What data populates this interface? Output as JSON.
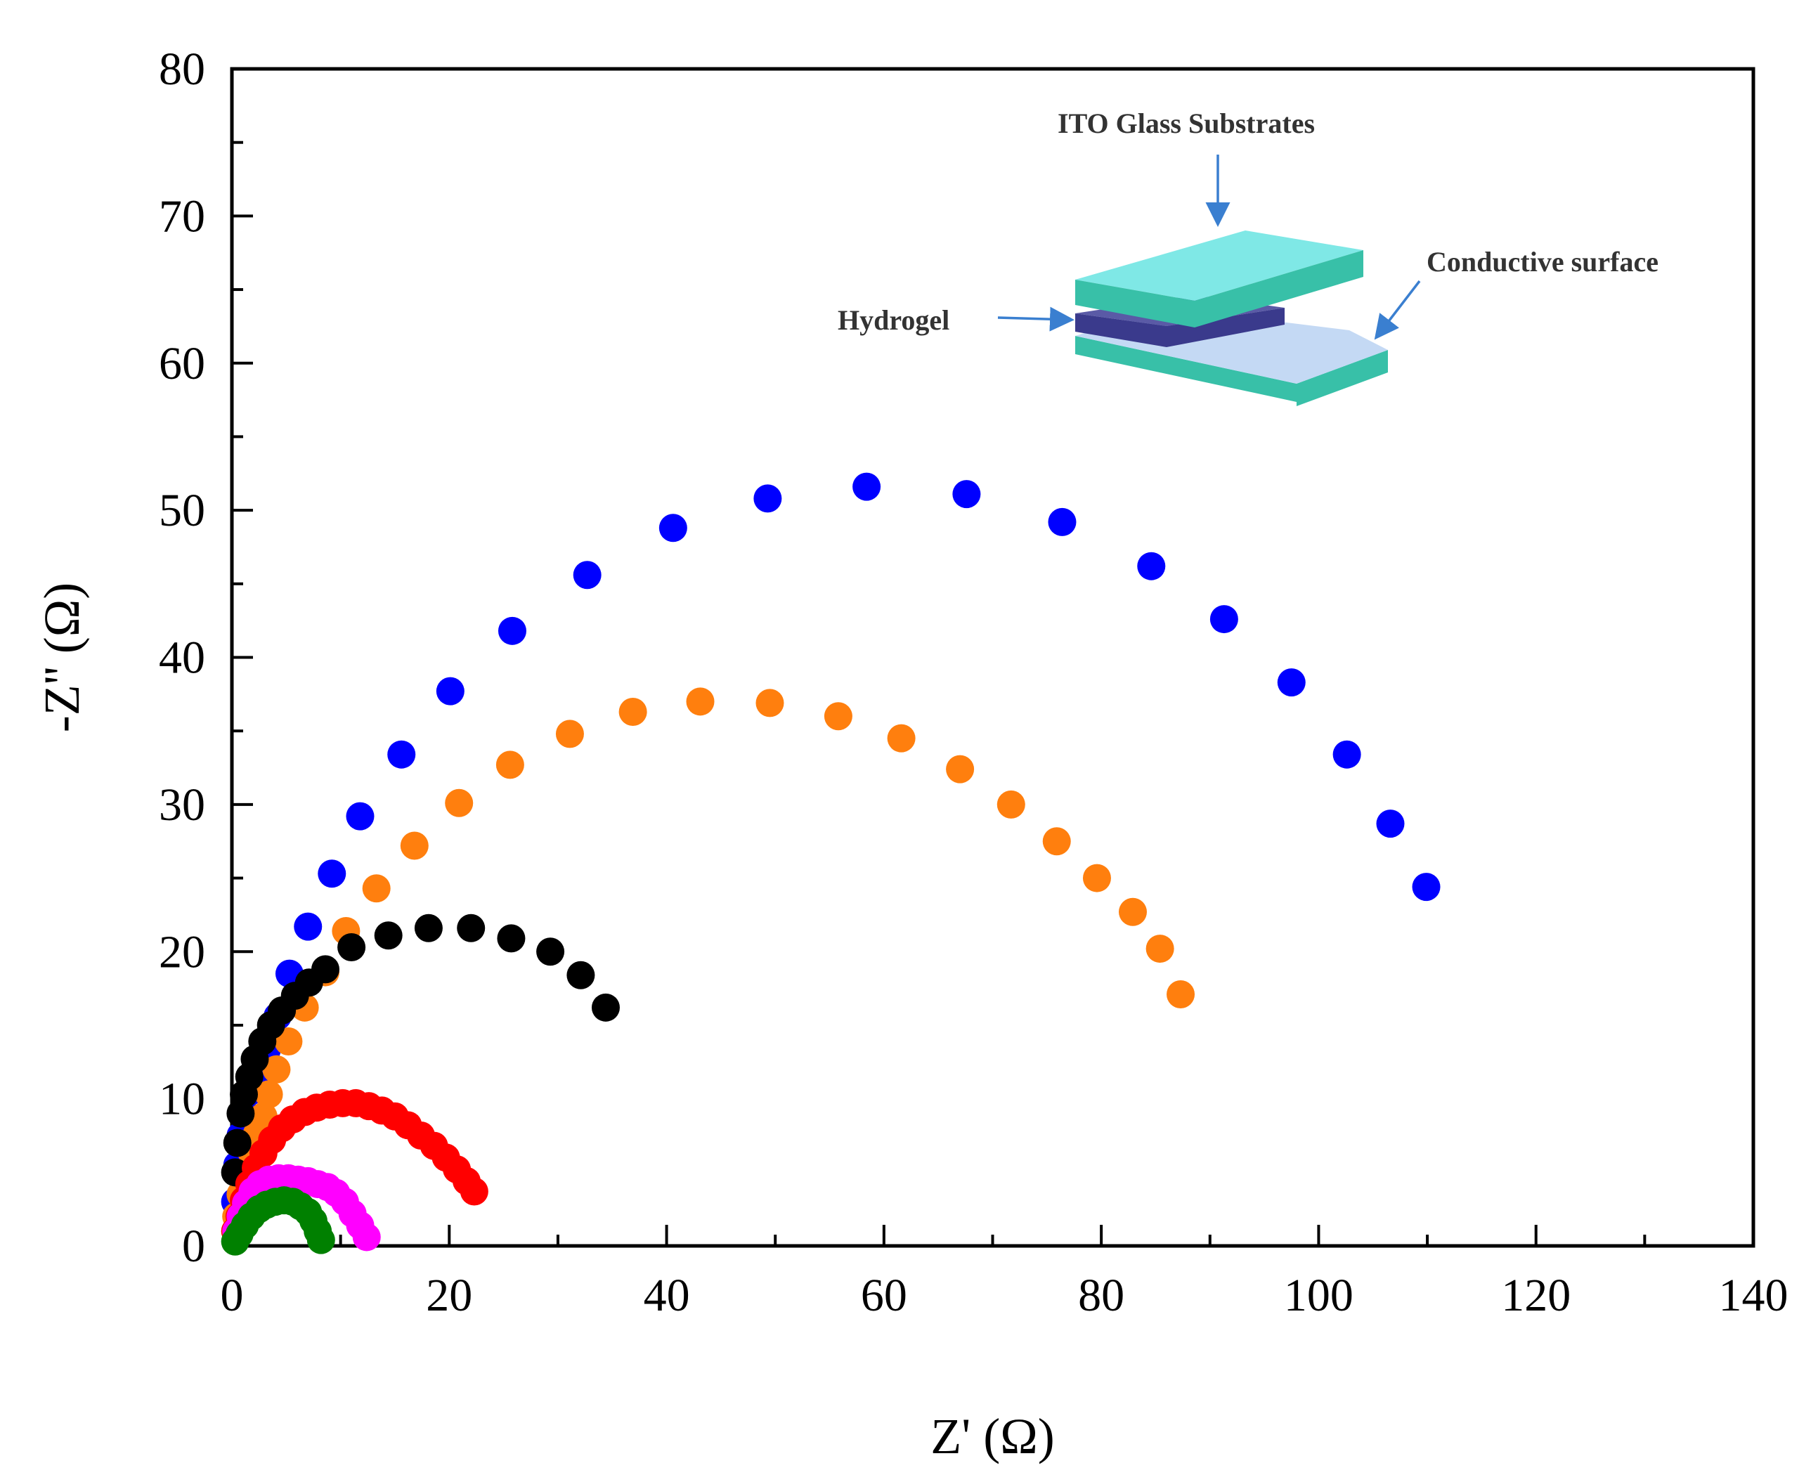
{
  "chart_data": {
    "type": "scatter",
    "title": "",
    "xlabel": "Z' (Ω)",
    "ylabel": "-Z'' (Ω)",
    "xlim": [
      0,
      140
    ],
    "ylim": [
      0,
      80
    ],
    "xticks": [
      0,
      20,
      40,
      60,
      80,
      100,
      120,
      140
    ],
    "yticks": [
      0,
      10,
      20,
      30,
      40,
      50,
      60,
      70,
      80
    ],
    "grid": false,
    "legend": "none",
    "series": [
      {
        "name": "blue",
        "color": "#0000ff",
        "points": [
          [
            0.3,
            3
          ],
          [
            0.5,
            5.5
          ],
          [
            0.8,
            7.5
          ],
          [
            1.2,
            9
          ],
          [
            1.7,
            10.5
          ],
          [
            2.3,
            11.8
          ],
          [
            3.2,
            13.3
          ],
          [
            4.2,
            15.6
          ],
          [
            5.3,
            18.5
          ],
          [
            7,
            21.7
          ],
          [
            9.2,
            25.3
          ],
          [
            11.8,
            29.2
          ],
          [
            15.6,
            33.4
          ],
          [
            20.1,
            37.7
          ],
          [
            25.8,
            41.8
          ],
          [
            32.7,
            45.6
          ],
          [
            40.6,
            48.8
          ],
          [
            49.3,
            50.8
          ],
          [
            58.4,
            51.6
          ],
          [
            67.6,
            51.1
          ],
          [
            76.4,
            49.2
          ],
          [
            84.6,
            46.2
          ],
          [
            91.3,
            42.6
          ],
          [
            97.5,
            38.3
          ],
          [
            102.6,
            33.4
          ],
          [
            106.6,
            28.7
          ],
          [
            109.9,
            24.4
          ]
        ]
      },
      {
        "name": "orange",
        "color": "#ff7f0e",
        "points": [
          [
            0.4,
            2
          ],
          [
            0.8,
            3.5
          ],
          [
            1.3,
            5
          ],
          [
            1.8,
            6.4
          ],
          [
            2.3,
            7.6
          ],
          [
            2.9,
            8.8
          ],
          [
            3.4,
            10.3
          ],
          [
            4.1,
            12
          ],
          [
            5.2,
            13.9
          ],
          [
            6.7,
            16.2
          ],
          [
            8.6,
            18.6
          ],
          [
            10.5,
            21.4
          ],
          [
            13.3,
            24.3
          ],
          [
            16.8,
            27.2
          ],
          [
            20.9,
            30.1
          ],
          [
            25.6,
            32.7
          ],
          [
            31.1,
            34.8
          ],
          [
            36.9,
            36.3
          ],
          [
            43.1,
            37
          ],
          [
            49.5,
            36.9
          ],
          [
            55.8,
            36
          ],
          [
            61.6,
            34.5
          ],
          [
            67,
            32.4
          ],
          [
            71.7,
            30
          ],
          [
            75.9,
            27.5
          ],
          [
            79.6,
            25
          ],
          [
            82.9,
            22.7
          ],
          [
            85.4,
            20.2
          ],
          [
            87.3,
            17.1
          ]
        ]
      },
      {
        "name": "black",
        "color": "#000000",
        "points": [
          [
            0.3,
            5
          ],
          [
            0.5,
            7
          ],
          [
            0.8,
            9
          ],
          [
            1.1,
            10.3
          ],
          [
            1.6,
            11.5
          ],
          [
            2.1,
            12.7
          ],
          [
            2.8,
            13.9
          ],
          [
            3.6,
            15
          ],
          [
            4.6,
            16
          ],
          [
            5.8,
            17
          ],
          [
            7.1,
            17.9
          ],
          [
            8.6,
            18.8
          ],
          [
            11,
            20.3
          ],
          [
            14.4,
            21.1
          ],
          [
            18.1,
            21.6
          ],
          [
            22,
            21.6
          ],
          [
            25.7,
            20.9
          ],
          [
            29.3,
            20
          ],
          [
            32.1,
            18.4
          ],
          [
            34.4,
            16.2
          ]
        ]
      },
      {
        "name": "red",
        "color": "#ff0000",
        "points": [
          [
            0.3,
            1
          ],
          [
            0.7,
            2
          ],
          [
            1.1,
            3.1
          ],
          [
            1.6,
            4.2
          ],
          [
            2.2,
            5.3
          ],
          [
            2.9,
            6.3
          ],
          [
            3.7,
            7.2
          ],
          [
            4.6,
            8
          ],
          [
            5.6,
            8.6
          ],
          [
            6.7,
            9.1
          ],
          [
            7.8,
            9.4
          ],
          [
            9,
            9.6
          ],
          [
            10.2,
            9.7
          ],
          [
            11.4,
            9.7
          ],
          [
            12.6,
            9.5
          ],
          [
            13.8,
            9.2
          ],
          [
            15,
            8.8
          ],
          [
            16.2,
            8.2
          ],
          [
            17.4,
            7.5
          ],
          [
            18.6,
            6.8
          ],
          [
            19.7,
            6
          ],
          [
            20.7,
            5.2
          ],
          [
            21.6,
            4.4
          ],
          [
            22.3,
            3.7
          ]
        ]
      },
      {
        "name": "magenta",
        "color": "#ff00ff",
        "points": [
          [
            0.4,
            1
          ],
          [
            0.8,
            2
          ],
          [
            1.3,
            2.9
          ],
          [
            1.9,
            3.7
          ],
          [
            2.6,
            4.2
          ],
          [
            3.4,
            4.5
          ],
          [
            4.3,
            4.6
          ],
          [
            5.2,
            4.6
          ],
          [
            6.1,
            4.5
          ],
          [
            7,
            4.4
          ],
          [
            7.9,
            4.2
          ],
          [
            8.8,
            4
          ],
          [
            9.6,
            3.6
          ],
          [
            10.4,
            3
          ],
          [
            11.1,
            2.2
          ],
          [
            11.8,
            1.4
          ],
          [
            12.4,
            0.6
          ]
        ]
      },
      {
        "name": "green",
        "color": "#008000",
        "points": [
          [
            0.3,
            0.3
          ],
          [
            0.7,
            0.8
          ],
          [
            1.2,
            1.4
          ],
          [
            1.8,
            2
          ],
          [
            2.5,
            2.5
          ],
          [
            3.2,
            2.8
          ],
          [
            4,
            3
          ],
          [
            4.8,
            3.1
          ],
          [
            5.6,
            3
          ],
          [
            6.3,
            2.7
          ],
          [
            7,
            2.3
          ],
          [
            7.5,
            1.7
          ],
          [
            7.9,
            1
          ],
          [
            8.2,
            0.4
          ]
        ]
      }
    ],
    "inset": {
      "labels": {
        "top": "ITO Glass Substrates",
        "right": "Conductive surface",
        "left": "Hydrogel"
      },
      "colors": {
        "glass_top": "#7fe8e6",
        "glass_side": "#38c0a8",
        "hydrogel_top": "#5a5aa6",
        "hydrogel_side": "#3a3a8c",
        "conductive": "#c4d9f4",
        "arrow": "#3a7fd0"
      }
    }
  }
}
